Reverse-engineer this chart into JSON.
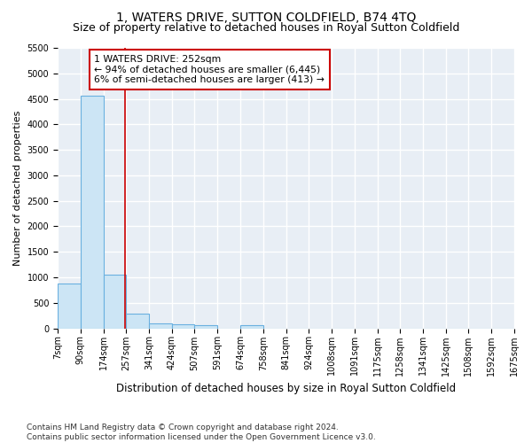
{
  "title1": "1, WATERS DRIVE, SUTTON COLDFIELD, B74 4TQ",
  "title2": "Size of property relative to detached houses in Royal Sutton Coldfield",
  "xlabel": "Distribution of detached houses by size in Royal Sutton Coldfield",
  "ylabel": "Number of detached properties",
  "footnote": "Contains HM Land Registry data © Crown copyright and database right 2024.\nContains public sector information licensed under the Open Government Licence v3.0.",
  "bin_edges": [
    7,
    90,
    174,
    257,
    341,
    424,
    507,
    591,
    674,
    758,
    841,
    924,
    1008,
    1091,
    1175,
    1258,
    1341,
    1425,
    1508,
    1592,
    1675
  ],
  "bar_heights": [
    870,
    4560,
    1060,
    290,
    100,
    80,
    60,
    0,
    60,
    0,
    0,
    0,
    0,
    0,
    0,
    0,
    0,
    0,
    0,
    0
  ],
  "bar_color": "#cce5f5",
  "bar_edge_color": "#6ab0e0",
  "vline_x": 252,
  "vline_color": "#cc0000",
  "ylim": [
    0,
    5500
  ],
  "yticks": [
    0,
    500,
    1000,
    1500,
    2000,
    2500,
    3000,
    3500,
    4000,
    4500,
    5000,
    5500
  ],
  "annotation_title": "1 WATERS DRIVE: 252sqm",
  "annotation_line1": "← 94% of detached houses are smaller (6,445)",
  "annotation_line2": "6% of semi-detached houses are larger (413) →",
  "annotation_box_color": "#cc0000",
  "fig_bg_color": "#ffffff",
  "plot_bg_color": "#e8eef5",
  "grid_color": "#ffffff",
  "title1_fontsize": 10,
  "title2_fontsize": 9,
  "tick_fontsize": 7,
  "ylabel_fontsize": 8,
  "xlabel_fontsize": 8.5,
  "footnote_fontsize": 6.5
}
